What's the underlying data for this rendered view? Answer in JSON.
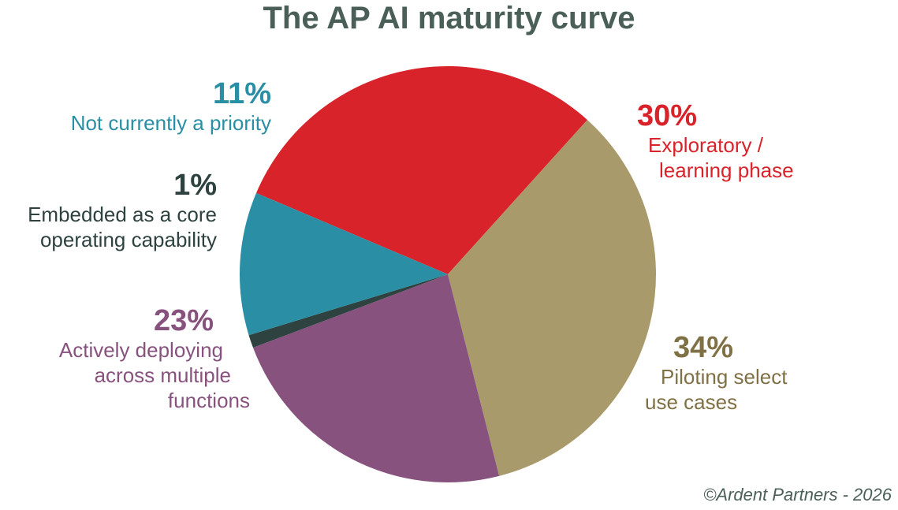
{
  "colors": {
    "title": "#4a5f58",
    "exploratory": "#d8232a",
    "piloting": "#a89a6a",
    "deploying": "#87527e",
    "embedded": "#2e4240",
    "not_priority": "#2a8fa4",
    "piloting_text": "#7f7045"
  },
  "chart_data": {
    "type": "pie",
    "title": "The AP AI maturity curve",
    "slices": [
      {
        "label": "Exploratory / learning phase",
        "value": 30,
        "pct_label": "30%",
        "line1": "Exploratory /",
        "line2": "learning phase"
      },
      {
        "label": "Piloting select use cases",
        "value": 34,
        "pct_label": "34%",
        "line1": "Piloting select",
        "line2": "use cases"
      },
      {
        "label": "Actively deploying across multiple functions",
        "value": 23,
        "pct_label": "23%",
        "line1": "Actively deploying",
        "line2": "across multiple",
        "line3": "functions"
      },
      {
        "label": "Embedded as a core operating capability",
        "value": 1,
        "pct_label": "1%",
        "line1": "Embedded as a core",
        "line2": "operating capability"
      },
      {
        "label": "Not currently a priority",
        "value": 11,
        "pct_label": "11%",
        "line1": "Not currently a priority"
      }
    ]
  },
  "copyright": "©Ardent Partners - 2026"
}
